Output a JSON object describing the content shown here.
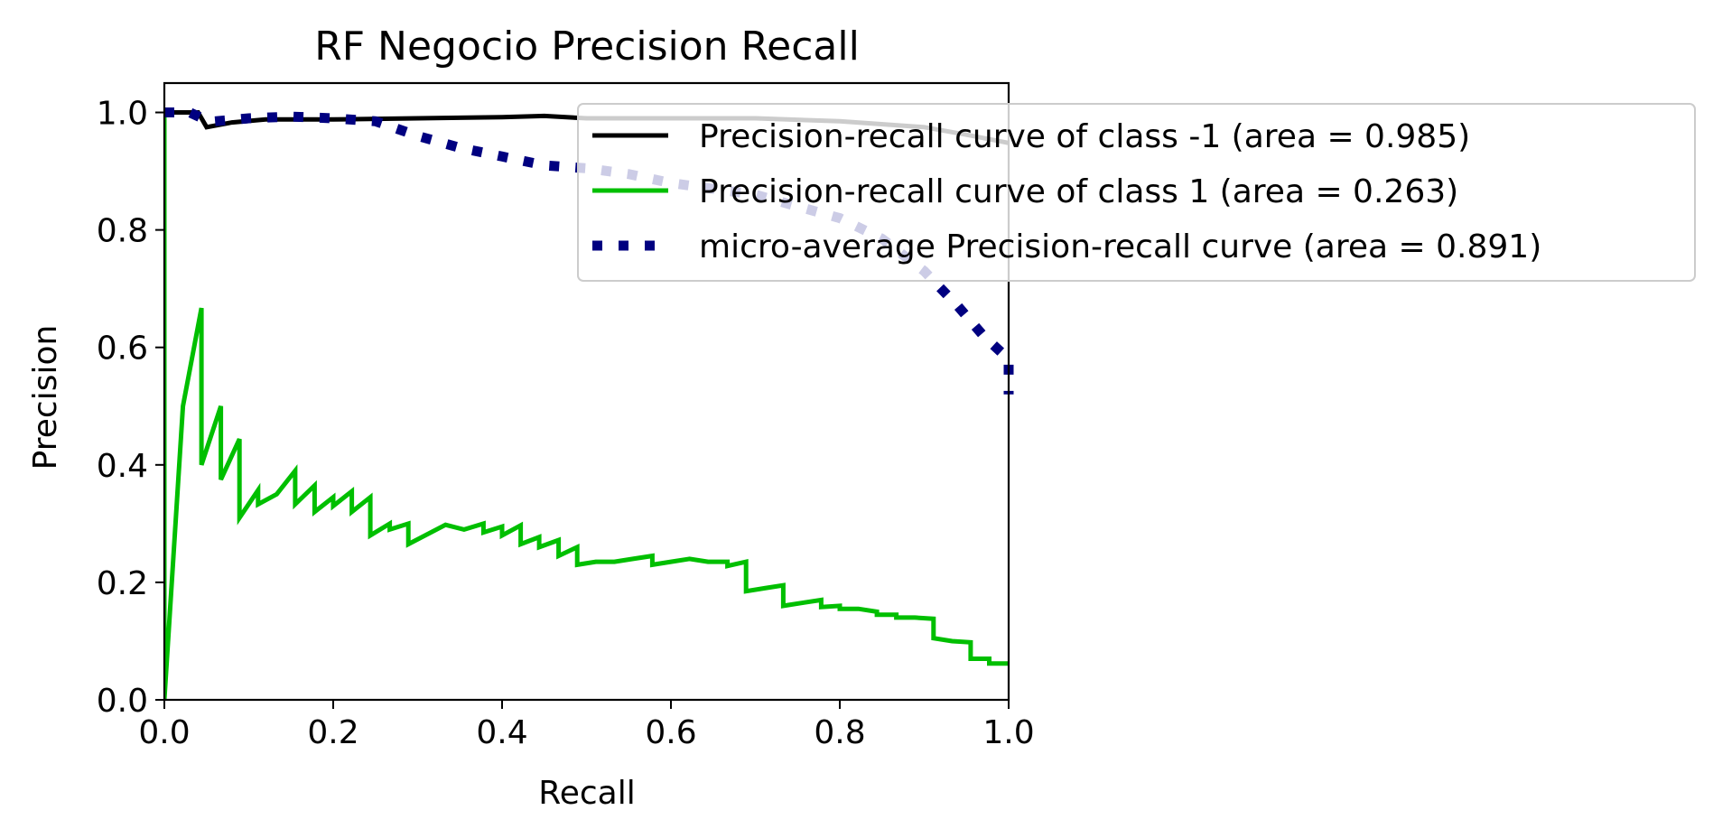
{
  "chart_data": {
    "type": "line",
    "title": "RF Negocio Precision Recall",
    "xlabel": "Recall",
    "ylabel": "Precision",
    "xlim": [
      0.0,
      1.0
    ],
    "ylim": [
      0.0,
      1.05
    ],
    "xticks": [
      "0.0",
      "0.2",
      "0.4",
      "0.6",
      "0.8",
      "1.0"
    ],
    "yticks": [
      "0.0",
      "0.2",
      "0.4",
      "0.6",
      "0.8",
      "1.0"
    ],
    "grid": false,
    "legend_position": "upper right (extends beyond axes)",
    "series": [
      {
        "name": "Precision-recall curve of class -1 (area = 0.985)",
        "color": "#000000",
        "style": "solid",
        "points": [
          [
            0.0,
            1.0
          ],
          [
            0.03,
            1.0
          ],
          [
            0.04,
            1.0
          ],
          [
            0.05,
            0.975
          ],
          [
            0.08,
            0.983
          ],
          [
            0.12,
            0.988
          ],
          [
            0.2,
            0.988
          ],
          [
            0.3,
            0.99
          ],
          [
            0.4,
            0.992
          ],
          [
            0.45,
            0.994
          ],
          [
            0.5,
            0.99
          ],
          [
            0.6,
            0.99
          ],
          [
            0.7,
            0.99
          ],
          [
            0.8,
            0.985
          ],
          [
            0.9,
            0.975
          ],
          [
            0.95,
            0.962
          ],
          [
            1.0,
            0.948
          ]
        ]
      },
      {
        "name": "Precision-recall curve of class 1 (area = 0.263)",
        "color": "#00bf00",
        "style": "solid",
        "points": [
          [
            0.0,
            0.0
          ],
          [
            0.0,
            1.0
          ],
          [
            0.0,
            0.0
          ],
          [
            0.022,
            0.5
          ],
          [
            0.044,
            0.667
          ],
          [
            0.044,
            0.4
          ],
          [
            0.067,
            0.5
          ],
          [
            0.067,
            0.375
          ],
          [
            0.089,
            0.444
          ],
          [
            0.089,
            0.31
          ],
          [
            0.111,
            0.357
          ],
          [
            0.111,
            0.333
          ],
          [
            0.133,
            0.35
          ],
          [
            0.155,
            0.39
          ],
          [
            0.155,
            0.333
          ],
          [
            0.178,
            0.365
          ],
          [
            0.178,
            0.32
          ],
          [
            0.2,
            0.345
          ],
          [
            0.2,
            0.33
          ],
          [
            0.222,
            0.355
          ],
          [
            0.222,
            0.32
          ],
          [
            0.244,
            0.345
          ],
          [
            0.244,
            0.28
          ],
          [
            0.267,
            0.3
          ],
          [
            0.267,
            0.29
          ],
          [
            0.289,
            0.3
          ],
          [
            0.289,
            0.265
          ],
          [
            0.333,
            0.298
          ],
          [
            0.355,
            0.29
          ],
          [
            0.378,
            0.3
          ],
          [
            0.378,
            0.285
          ],
          [
            0.4,
            0.295
          ],
          [
            0.4,
            0.28
          ],
          [
            0.422,
            0.297
          ],
          [
            0.422,
            0.265
          ],
          [
            0.444,
            0.277
          ],
          [
            0.444,
            0.26
          ],
          [
            0.467,
            0.272
          ],
          [
            0.467,
            0.245
          ],
          [
            0.489,
            0.26
          ],
          [
            0.489,
            0.23
          ],
          [
            0.511,
            0.235
          ],
          [
            0.533,
            0.235
          ],
          [
            0.555,
            0.24
          ],
          [
            0.578,
            0.245
          ],
          [
            0.578,
            0.23
          ],
          [
            0.6,
            0.235
          ],
          [
            0.622,
            0.24
          ],
          [
            0.644,
            0.235
          ],
          [
            0.667,
            0.235
          ],
          [
            0.667,
            0.228
          ],
          [
            0.689,
            0.235
          ],
          [
            0.689,
            0.185
          ],
          [
            0.711,
            0.19
          ],
          [
            0.733,
            0.195
          ],
          [
            0.733,
            0.16
          ],
          [
            0.755,
            0.165
          ],
          [
            0.778,
            0.17
          ],
          [
            0.778,
            0.158
          ],
          [
            0.8,
            0.16
          ],
          [
            0.8,
            0.155
          ],
          [
            0.822,
            0.155
          ],
          [
            0.844,
            0.15
          ],
          [
            0.844,
            0.145
          ],
          [
            0.867,
            0.145
          ],
          [
            0.867,
            0.14
          ],
          [
            0.889,
            0.14
          ],
          [
            0.911,
            0.138
          ],
          [
            0.911,
            0.105
          ],
          [
            0.933,
            0.1
          ],
          [
            0.955,
            0.098
          ],
          [
            0.955,
            0.07
          ],
          [
            0.977,
            0.07
          ],
          [
            0.977,
            0.062
          ],
          [
            1.0,
            0.062
          ]
        ]
      },
      {
        "name": "micro-average Precision-recall curve (area = 0.891)",
        "color": "#000080",
        "style": "dotted",
        "points": [
          [
            0.0,
            1.0
          ],
          [
            0.03,
            1.0
          ],
          [
            0.045,
            0.99
          ],
          [
            0.06,
            0.985
          ],
          [
            0.1,
            0.99
          ],
          [
            0.15,
            0.993
          ],
          [
            0.2,
            0.99
          ],
          [
            0.25,
            0.985
          ],
          [
            0.3,
            0.96
          ],
          [
            0.35,
            0.94
          ],
          [
            0.4,
            0.925
          ],
          [
            0.45,
            0.91
          ],
          [
            0.5,
            0.905
          ],
          [
            0.55,
            0.895
          ],
          [
            0.6,
            0.88
          ],
          [
            0.65,
            0.87
          ],
          [
            0.7,
            0.86
          ],
          [
            0.75,
            0.84
          ],
          [
            0.8,
            0.82
          ],
          [
            0.85,
            0.785
          ],
          [
            0.9,
            0.73
          ],
          [
            0.94,
            0.67
          ],
          [
            0.97,
            0.62
          ],
          [
            1.0,
            0.58
          ],
          [
            1.0,
            0.52
          ]
        ]
      }
    ]
  }
}
